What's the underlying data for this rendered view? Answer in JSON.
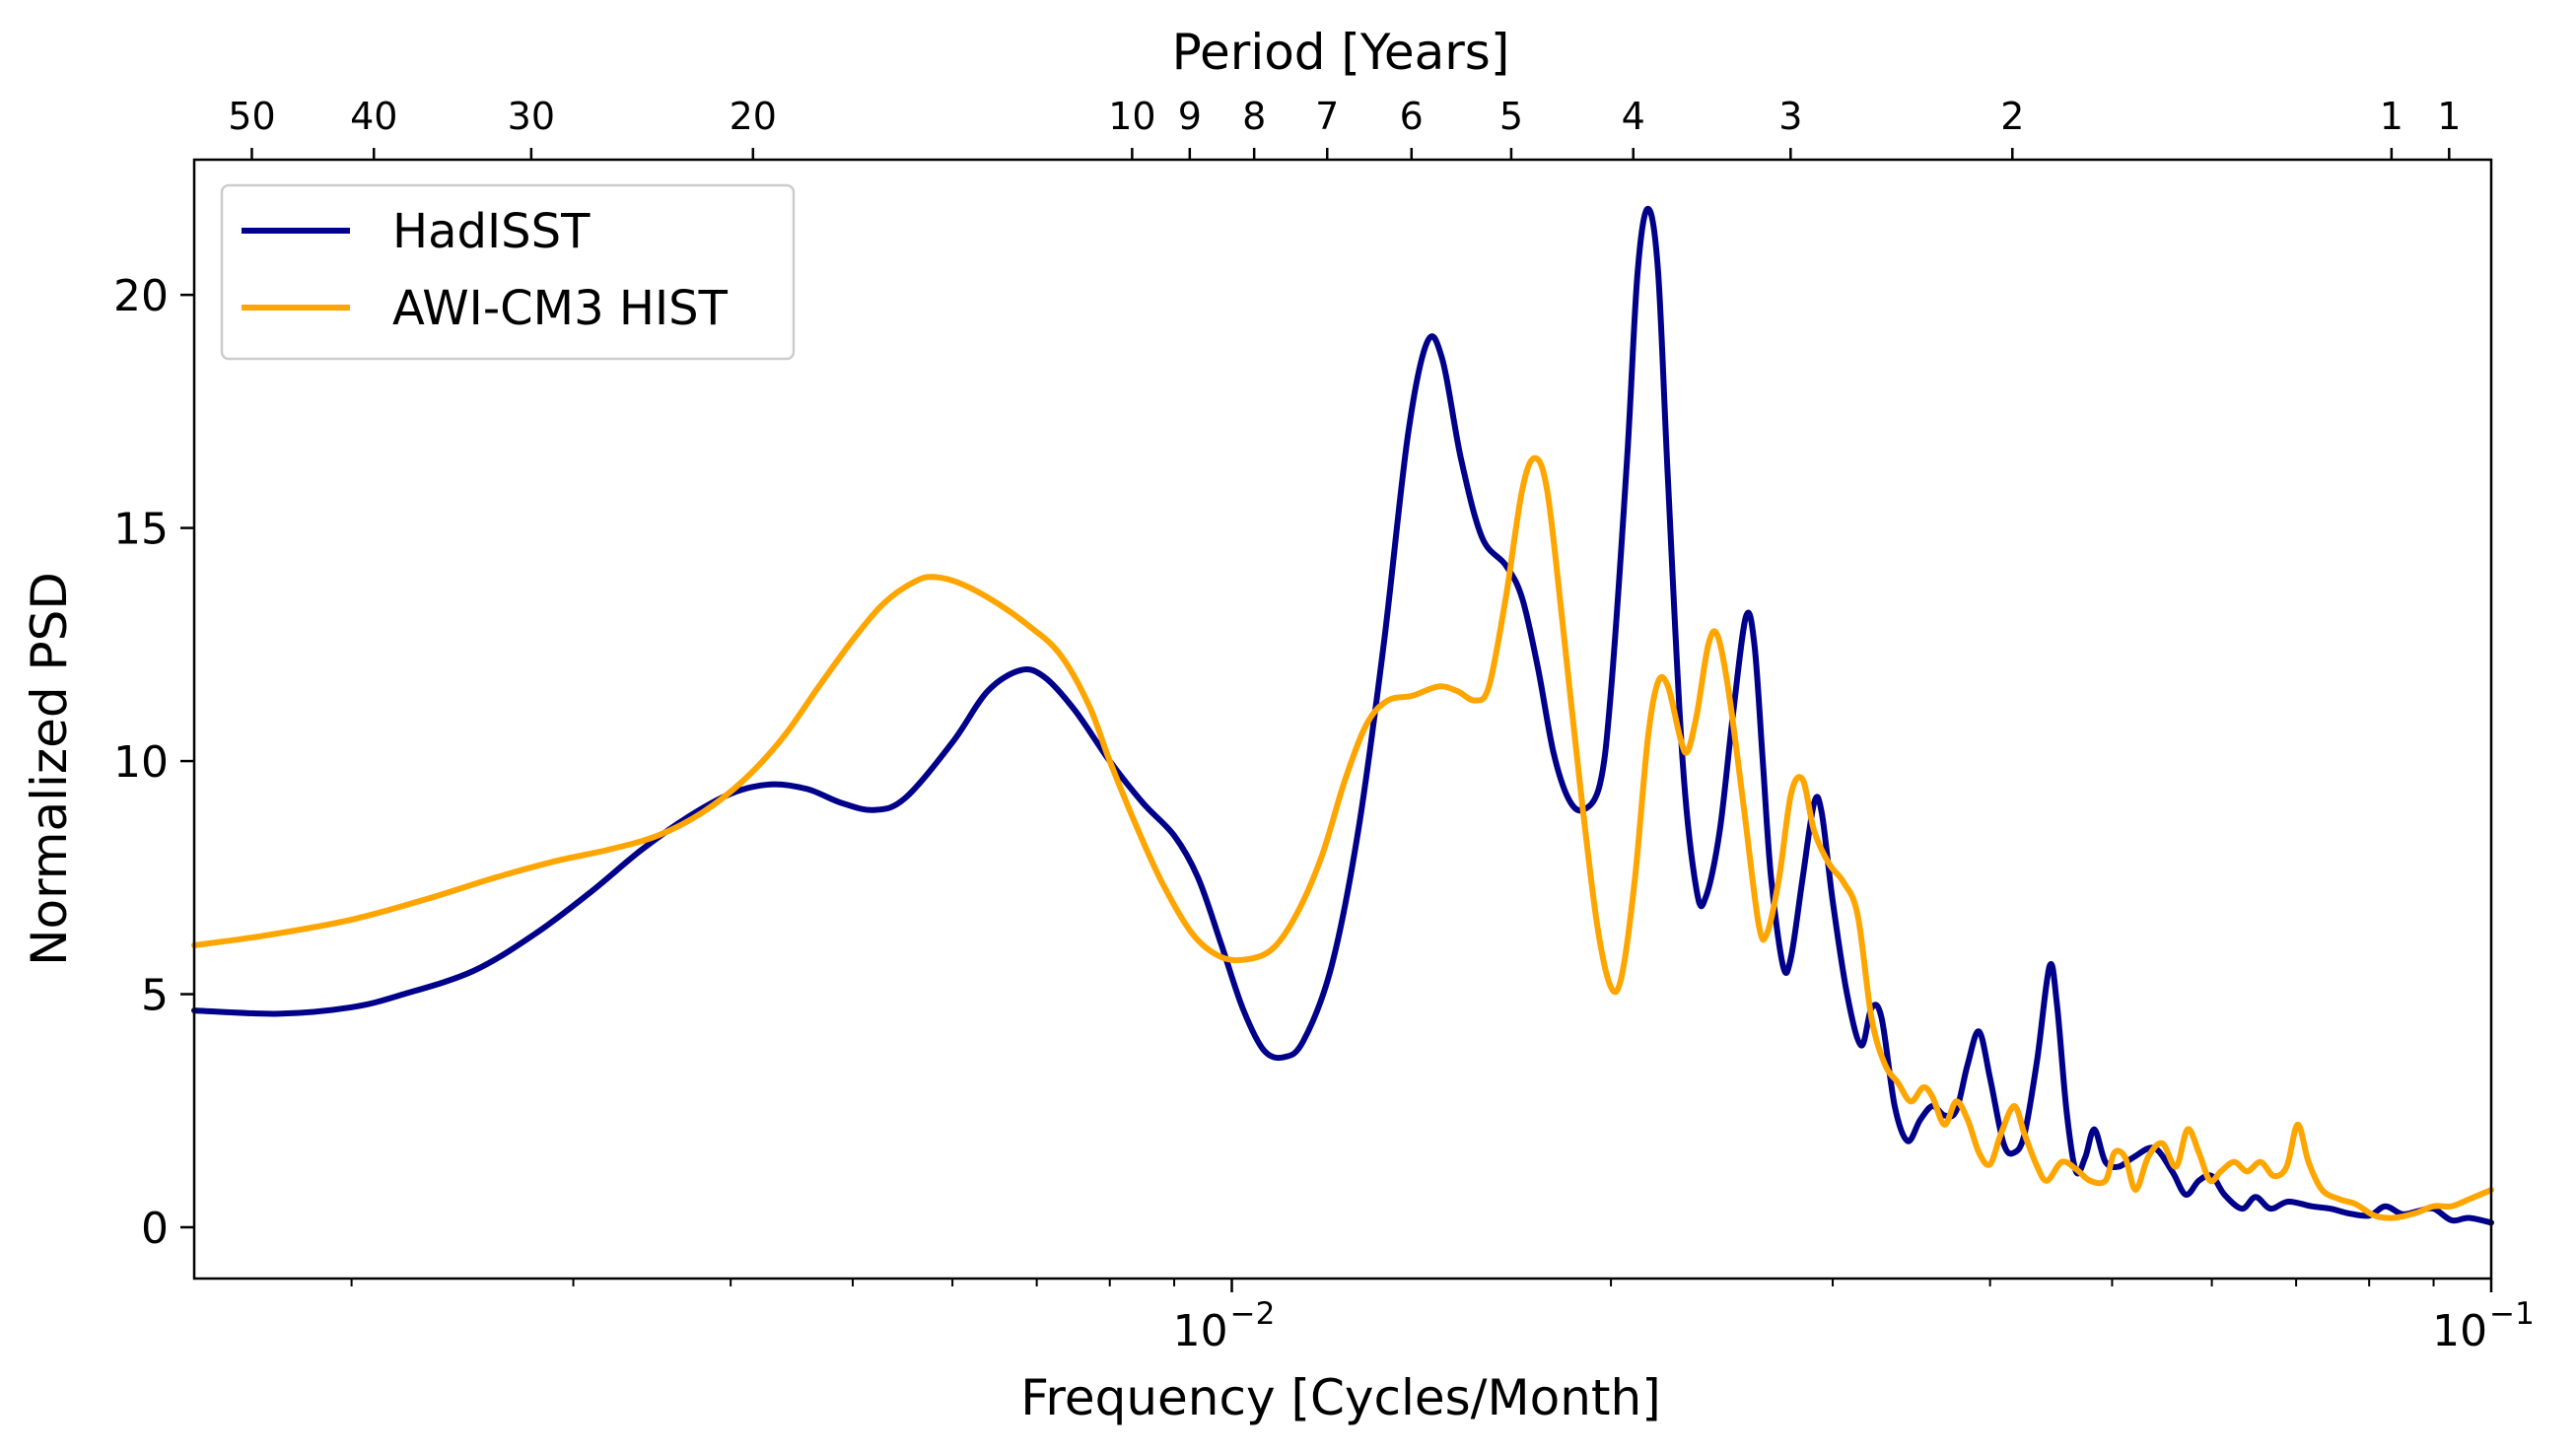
{
  "chart_data": {
    "type": "line",
    "xlabel": "Frequency [Cycles/Month]",
    "ylabel": "Normalized PSD",
    "top_xlabel": "Period [Years]",
    "x_scale": "log",
    "xlim": [
      0.0015,
      0.1
    ],
    "ylim": [
      -1.1,
      22.9
    ],
    "grid": false,
    "legend_position": "top-left",
    "y_ticks": [
      {
        "value": 0,
        "label": "0"
      },
      {
        "value": 5,
        "label": "5"
      },
      {
        "value": 10,
        "label": "10"
      },
      {
        "value": 15,
        "label": "15"
      },
      {
        "value": 20,
        "label": "20"
      }
    ],
    "x_major_ticks": [
      {
        "value": 0.01,
        "base": "10",
        "exp": "−2"
      },
      {
        "value": 0.1,
        "base": "10",
        "exp": "−1"
      }
    ],
    "x_minor_ticks": [
      0.002,
      0.003,
      0.004,
      0.005,
      0.006,
      0.007,
      0.008,
      0.009,
      0.02,
      0.03,
      0.04,
      0.05,
      0.06,
      0.07,
      0.08,
      0.09
    ],
    "top_ticks": [
      {
        "label": "50",
        "x": 0.0016667
      },
      {
        "label": "40",
        "x": 0.0020833
      },
      {
        "label": "30",
        "x": 0.0027778
      },
      {
        "label": "20",
        "x": 0.0041667
      },
      {
        "label": "10",
        "x": 0.0083333
      },
      {
        "label": "9",
        "x": 0.0092593
      },
      {
        "label": "8",
        "x": 0.0104167
      },
      {
        "label": "7",
        "x": 0.0119048
      },
      {
        "label": "6",
        "x": 0.0138889
      },
      {
        "label": "5",
        "x": 0.0166667
      },
      {
        "label": "4",
        "x": 0.0208333
      },
      {
        "label": "3",
        "x": 0.0277778
      },
      {
        "label": "2",
        "x": 0.0416667
      },
      {
        "label": "1",
        "x": 0.0833333
      },
      {
        "label": "1",
        "x": 0.0925926
      }
    ],
    "series": [
      {
        "name": "HadISST",
        "color": "#00008b",
        "points": [
          [
            0.0015,
            4.65
          ],
          [
            0.00175,
            4.58
          ],
          [
            0.002,
            4.72
          ],
          [
            0.0022,
            5.0
          ],
          [
            0.0025,
            5.5
          ],
          [
            0.0028,
            6.3
          ],
          [
            0.0031,
            7.2
          ],
          [
            0.0034,
            8.1
          ],
          [
            0.0037,
            8.8
          ],
          [
            0.004,
            9.3
          ],
          [
            0.0043,
            9.5
          ],
          [
            0.0046,
            9.4
          ],
          [
            0.0049,
            9.1
          ],
          [
            0.0052,
            8.95
          ],
          [
            0.0055,
            9.2
          ],
          [
            0.006,
            10.4
          ],
          [
            0.0064,
            11.5
          ],
          [
            0.0068,
            11.95
          ],
          [
            0.0071,
            11.8
          ],
          [
            0.0075,
            11.1
          ],
          [
            0.008,
            10.0
          ],
          [
            0.0085,
            9.1
          ],
          [
            0.009,
            8.4
          ],
          [
            0.0094,
            7.5
          ],
          [
            0.0098,
            6.1
          ],
          [
            0.0102,
            4.7
          ],
          [
            0.0106,
            3.8
          ],
          [
            0.011,
            3.65
          ],
          [
            0.0114,
            4.0
          ],
          [
            0.012,
            5.6
          ],
          [
            0.0126,
            8.5
          ],
          [
            0.0132,
            12.5
          ],
          [
            0.0138,
            17.0
          ],
          [
            0.0143,
            19.0
          ],
          [
            0.0147,
            18.6
          ],
          [
            0.0152,
            16.5
          ],
          [
            0.0158,
            14.8
          ],
          [
            0.0165,
            14.2
          ],
          [
            0.017,
            13.5
          ],
          [
            0.0175,
            12.0
          ],
          [
            0.018,
            10.2
          ],
          [
            0.0185,
            9.2
          ],
          [
            0.019,
            8.95
          ],
          [
            0.0196,
            9.5
          ],
          [
            0.02,
            11.5
          ],
          [
            0.0206,
            16.5
          ],
          [
            0.021,
            20.5
          ],
          [
            0.0214,
            21.85
          ],
          [
            0.0218,
            20.5
          ],
          [
            0.0222,
            16.0
          ],
          [
            0.0228,
            10.0
          ],
          [
            0.0234,
            7.2
          ],
          [
            0.0238,
            7.1
          ],
          [
            0.0244,
            8.5
          ],
          [
            0.025,
            11.0
          ],
          [
            0.0256,
            13.1
          ],
          [
            0.026,
            12.5
          ],
          [
            0.0264,
            10.0
          ],
          [
            0.0268,
            7.5
          ],
          [
            0.0274,
            5.6
          ],
          [
            0.0278,
            5.8
          ],
          [
            0.0284,
            7.5
          ],
          [
            0.029,
            9.1
          ],
          [
            0.0294,
            8.9
          ],
          [
            0.03,
            7.0
          ],
          [
            0.0308,
            5.0
          ],
          [
            0.0316,
            3.9
          ],
          [
            0.0322,
            4.7
          ],
          [
            0.0328,
            4.5
          ],
          [
            0.0336,
            2.6
          ],
          [
            0.0344,
            1.85
          ],
          [
            0.0352,
            2.3
          ],
          [
            0.036,
            2.6
          ],
          [
            0.0368,
            2.4
          ],
          [
            0.0376,
            2.5
          ],
          [
            0.0384,
            3.5
          ],
          [
            0.0392,
            4.2
          ],
          [
            0.04,
            3.2
          ],
          [
            0.041,
            1.8
          ],
          [
            0.0418,
            1.6
          ],
          [
            0.0426,
            2.0
          ],
          [
            0.0436,
            3.6
          ],
          [
            0.0446,
            5.6
          ],
          [
            0.0452,
            4.8
          ],
          [
            0.046,
            2.5
          ],
          [
            0.0468,
            1.2
          ],
          [
            0.0476,
            1.5
          ],
          [
            0.0484,
            2.1
          ],
          [
            0.0494,
            1.4
          ],
          [
            0.0506,
            1.3
          ],
          [
            0.052,
            1.5
          ],
          [
            0.054,
            1.7
          ],
          [
            0.0558,
            1.2
          ],
          [
            0.0572,
            0.7
          ],
          [
            0.0586,
            1.0
          ],
          [
            0.06,
            1.1
          ],
          [
            0.0614,
            0.7
          ],
          [
            0.0634,
            0.4
          ],
          [
            0.065,
            0.65
          ],
          [
            0.0668,
            0.4
          ],
          [
            0.069,
            0.55
          ],
          [
            0.072,
            0.45
          ],
          [
            0.0745,
            0.4
          ],
          [
            0.077,
            0.3
          ],
          [
            0.08,
            0.25
          ],
          [
            0.0824,
            0.45
          ],
          [
            0.085,
            0.28
          ],
          [
            0.0876,
            0.35
          ],
          [
            0.09,
            0.4
          ],
          [
            0.093,
            0.15
          ],
          [
            0.096,
            0.2
          ],
          [
            0.1,
            0.1
          ]
        ]
      },
      {
        "name": "AWI-CM3 HIST",
        "color": "#ffa500",
        "points": [
          [
            0.0015,
            6.05
          ],
          [
            0.0017,
            6.25
          ],
          [
            0.002,
            6.6
          ],
          [
            0.0023,
            7.05
          ],
          [
            0.0026,
            7.5
          ],
          [
            0.0029,
            7.85
          ],
          [
            0.0032,
            8.1
          ],
          [
            0.0035,
            8.4
          ],
          [
            0.0038,
            8.9
          ],
          [
            0.0041,
            9.6
          ],
          [
            0.0044,
            10.5
          ],
          [
            0.0047,
            11.6
          ],
          [
            0.005,
            12.6
          ],
          [
            0.0053,
            13.4
          ],
          [
            0.0056,
            13.85
          ],
          [
            0.0058,
            13.95
          ],
          [
            0.0061,
            13.8
          ],
          [
            0.0065,
            13.4
          ],
          [
            0.0069,
            12.9
          ],
          [
            0.0073,
            12.3
          ],
          [
            0.0077,
            11.2
          ],
          [
            0.008,
            10.0
          ],
          [
            0.0084,
            8.6
          ],
          [
            0.0088,
            7.4
          ],
          [
            0.0093,
            6.3
          ],
          [
            0.0098,
            5.8
          ],
          [
            0.0103,
            5.75
          ],
          [
            0.0108,
            6.0
          ],
          [
            0.0113,
            6.8
          ],
          [
            0.0118,
            8.0
          ],
          [
            0.0123,
            9.6
          ],
          [
            0.0128,
            10.8
          ],
          [
            0.0133,
            11.3
          ],
          [
            0.0139,
            11.4
          ],
          [
            0.0146,
            11.6
          ],
          [
            0.0151,
            11.5
          ],
          [
            0.0156,
            11.3
          ],
          [
            0.016,
            11.6
          ],
          [
            0.0165,
            13.5
          ],
          [
            0.017,
            15.8
          ],
          [
            0.0174,
            16.5
          ],
          [
            0.0178,
            15.8
          ],
          [
            0.0183,
            13.0
          ],
          [
            0.0189,
            9.5
          ],
          [
            0.0195,
            6.5
          ],
          [
            0.02,
            5.15
          ],
          [
            0.0204,
            5.4
          ],
          [
            0.0209,
            7.5
          ],
          [
            0.0214,
            10.5
          ],
          [
            0.0218,
            11.7
          ],
          [
            0.0222,
            11.6
          ],
          [
            0.0227,
            10.5
          ],
          [
            0.023,
            10.2
          ],
          [
            0.0234,
            11.0
          ],
          [
            0.0239,
            12.5
          ],
          [
            0.0243,
            12.7
          ],
          [
            0.0248,
            11.5
          ],
          [
            0.0255,
            9.0
          ],
          [
            0.0262,
            6.5
          ],
          [
            0.0266,
            6.3
          ],
          [
            0.0272,
            7.5
          ],
          [
            0.0278,
            9.3
          ],
          [
            0.0284,
            9.6
          ],
          [
            0.029,
            8.5
          ],
          [
            0.0298,
            7.8
          ],
          [
            0.0306,
            7.4
          ],
          [
            0.0314,
            6.7
          ],
          [
            0.0322,
            4.5
          ],
          [
            0.033,
            3.5
          ],
          [
            0.0338,
            3.1
          ],
          [
            0.0346,
            2.7
          ],
          [
            0.0354,
            3.0
          ],
          [
            0.036,
            2.8
          ],
          [
            0.0368,
            2.2
          ],
          [
            0.0376,
            2.7
          ],
          [
            0.0384,
            2.3
          ],
          [
            0.0392,
            1.6
          ],
          [
            0.04,
            1.35
          ],
          [
            0.0408,
            2.0
          ],
          [
            0.0418,
            2.6
          ],
          [
            0.0426,
            2.0
          ],
          [
            0.0436,
            1.3
          ],
          [
            0.0444,
            1.0
          ],
          [
            0.0456,
            1.4
          ],
          [
            0.0468,
            1.25
          ],
          [
            0.048,
            1.0
          ],
          [
            0.0494,
            1.0
          ],
          [
            0.0502,
            1.6
          ],
          [
            0.0512,
            1.5
          ],
          [
            0.0522,
            0.8
          ],
          [
            0.0534,
            1.5
          ],
          [
            0.0548,
            1.8
          ],
          [
            0.0562,
            1.3
          ],
          [
            0.0574,
            2.1
          ],
          [
            0.0586,
            1.6
          ],
          [
            0.0598,
            1.0
          ],
          [
            0.061,
            1.2
          ],
          [
            0.0625,
            1.4
          ],
          [
            0.064,
            1.2
          ],
          [
            0.0656,
            1.4
          ],
          [
            0.0672,
            1.1
          ],
          [
            0.0688,
            1.3
          ],
          [
            0.0702,
            2.2
          ],
          [
            0.0716,
            1.4
          ],
          [
            0.0734,
            0.8
          ],
          [
            0.0758,
            0.6
          ],
          [
            0.078,
            0.5
          ],
          [
            0.0808,
            0.25
          ],
          [
            0.0836,
            0.2
          ],
          [
            0.087,
            0.3
          ],
          [
            0.09,
            0.45
          ],
          [
            0.093,
            0.45
          ],
          [
            0.096,
            0.6
          ],
          [
            0.1,
            0.8
          ]
        ]
      }
    ]
  }
}
